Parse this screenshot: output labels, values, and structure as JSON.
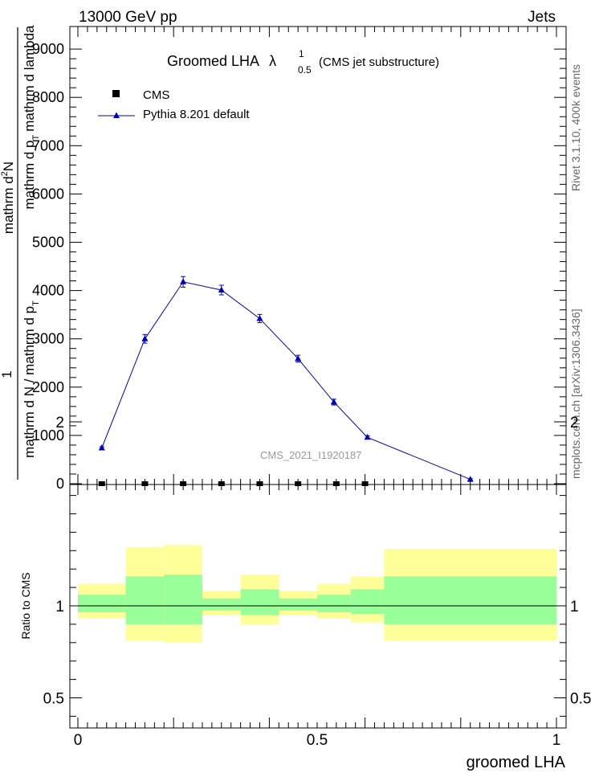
{
  "header": {
    "left": "13000 GeV pp",
    "right": "Jets"
  },
  "plot_title": {
    "main": "Groomed LHA",
    "symbol": "λ",
    "sup": "1",
    "sub": "0.5",
    "suffix": "(CMS jet substructure)"
  },
  "side_labels": {
    "top": "Rivet 3.1.10,  400k events",
    "bottom": "mcplots.cern.ch [arXiv:1306.3436]"
  },
  "watermark": "CMS_2021_I1920187",
  "ylabel_main": {
    "numerator_1": "mathrm d",
    "numerator_sup": "2",
    "numerator_2": "N",
    "denominator_1": "mathrm d p",
    "denominator_sub": "T",
    "denominator_2": "mathrm d lambda",
    "inner_numerator": "1",
    "inner_denominator_1": "mathrm d N / mathrm d p",
    "inner_denominator_sub": "T"
  },
  "ylabel_ratio": "Ratio to CMS",
  "xlabel": "groomed LHA",
  "colors": {
    "mc": "#0000bb",
    "band_outer": "#ffff99",
    "band_inner": "#99ff99"
  },
  "chart_data": [
    {
      "type": "line",
      "title": "Groomed LHA λ^1_0.5 (CMS jet substructure)",
      "xlim": [
        0,
        1
      ],
      "ylim": [
        0,
        9000
      ],
      "yticks": [
        0,
        1000,
        2000,
        3000,
        4000,
        5000,
        6000,
        7000,
        8000,
        9000
      ],
      "ytick_labels": [
        "0",
        "1000",
        "2000",
        "3000",
        "4000",
        "5000",
        "6000",
        "7000",
        "8000",
        "9000"
      ],
      "legend_position": "top-left",
      "series": [
        {
          "name": "CMS",
          "marker": "square",
          "x": [
            0.05,
            0.14,
            0.22,
            0.3,
            0.38,
            0.46,
            0.54,
            0.6
          ],
          "y": [
            0,
            0,
            0,
            0,
            0,
            0,
            0,
            0
          ]
        },
        {
          "name": "Pythia 8.201 default",
          "marker": "triangle",
          "x": [
            0.05,
            0.14,
            0.22,
            0.3,
            0.38,
            0.46,
            0.535,
            0.605,
            0.82
          ],
          "y": [
            740,
            3000,
            4180,
            4010,
            3420,
            2590,
            1690,
            960,
            90
          ],
          "yerr": [
            25,
            90,
            110,
            100,
            85,
            70,
            60,
            30,
            15
          ]
        }
      ]
    },
    {
      "type": "area",
      "ylabel": "Ratio to CMS",
      "xlabel": "groomed LHA",
      "xlim": [
        0,
        1
      ],
      "ylim": [
        0.35,
        2.35
      ],
      "xticks": [
        0,
        0.5,
        1
      ],
      "xtick_labels": [
        "0",
        "0.5",
        "1"
      ],
      "yticks": [
        0.5,
        1,
        2
      ],
      "ytick_labels": [
        "0.5",
        "1",
        "2"
      ],
      "bins": [
        {
          "lo": 0.0,
          "hi": 0.1,
          "outer": [
            0.93,
            1.12
          ],
          "inner": [
            0.965,
            1.06
          ]
        },
        {
          "lo": 0.1,
          "hi": 0.18,
          "outer": [
            0.81,
            1.32
          ],
          "inner": [
            0.9,
            1.16
          ]
        },
        {
          "lo": 0.18,
          "hi": 0.26,
          "outer": [
            0.8,
            1.33
          ],
          "inner": [
            0.9,
            1.17
          ]
        },
        {
          "lo": 0.26,
          "hi": 0.34,
          "outer": [
            0.95,
            1.08
          ],
          "inner": [
            0.975,
            1.04
          ]
        },
        {
          "lo": 0.34,
          "hi": 0.42,
          "outer": [
            0.9,
            1.17
          ],
          "inner": [
            0.95,
            1.09
          ]
        },
        {
          "lo": 0.42,
          "hi": 0.5,
          "outer": [
            0.95,
            1.08
          ],
          "inner": [
            0.975,
            1.04
          ]
        },
        {
          "lo": 0.5,
          "hi": 0.57,
          "outer": [
            0.93,
            1.12
          ],
          "inner": [
            0.965,
            1.06
          ]
        },
        {
          "lo": 0.57,
          "hi": 0.64,
          "outer": [
            0.91,
            1.16
          ],
          "inner": [
            0.955,
            1.09
          ]
        },
        {
          "lo": 0.64,
          "hi": 1.0,
          "outer": [
            0.81,
            1.31
          ],
          "inner": [
            0.9,
            1.16
          ]
        }
      ],
      "reference": 1
    }
  ]
}
